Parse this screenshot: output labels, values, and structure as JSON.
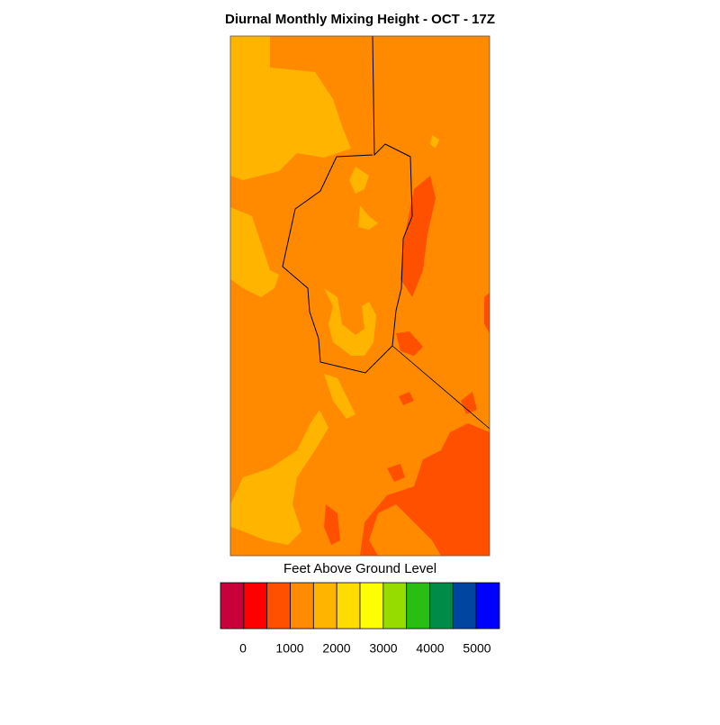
{
  "title": "Diurnal Monthly Mixing Height - OCT - 17Z",
  "colorbar": {
    "label": "Feet Above Ground Level",
    "colors": [
      "#c8003c",
      "#ff0000",
      "#ff5000",
      "#ff8c00",
      "#ffb400",
      "#ffdc00",
      "#ffff00",
      "#96dc00",
      "#28be14",
      "#008c46",
      "#0046a0",
      "#0000ff"
    ],
    "ticks": [
      0,
      1000,
      2000,
      3000,
      4000,
      5000
    ]
  }
}
